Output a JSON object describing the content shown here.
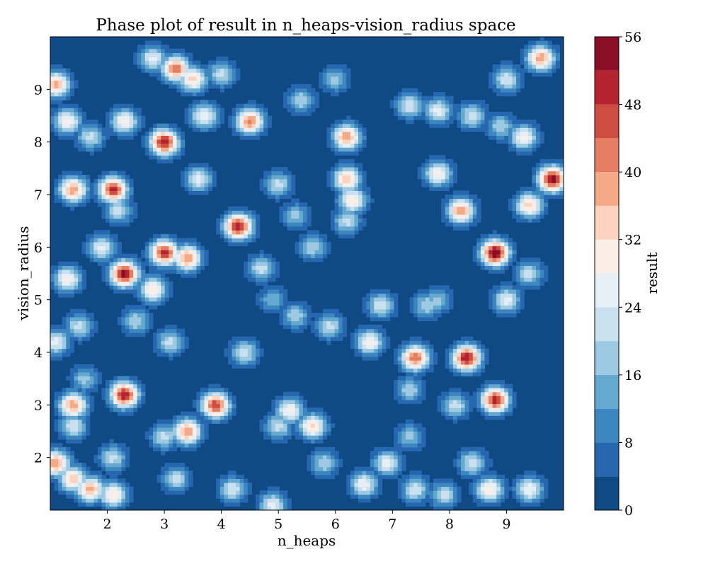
{
  "chart_data": {
    "type": "heatmap",
    "subtype": "filled-contour",
    "title": "Phase plot of result in n_heaps-vision_radius space",
    "xlabel": "n_heaps",
    "ylabel": "vision_radius",
    "xlim": [
      1,
      10
    ],
    "ylim": [
      1,
      10
    ],
    "xticks": [
      2,
      3,
      4,
      5,
      6,
      7,
      8,
      9
    ],
    "yticks": [
      2,
      3,
      4,
      5,
      6,
      7,
      8,
      9
    ],
    "grid": false,
    "colorbar": {
      "label": "result",
      "range": [
        0,
        56
      ],
      "levels": [
        0,
        4,
        8,
        12,
        16,
        20,
        24,
        28,
        32,
        36,
        40,
        44,
        48,
        52,
        56
      ],
      "ticks": [
        0,
        8,
        16,
        24,
        32,
        40,
        48,
        56
      ],
      "colors": [
        "#0f4a85",
        "#2767b0",
        "#3c87bf",
        "#66a9d0",
        "#9ec9e2",
        "#c9e0ef",
        "#e6eff5",
        "#faeee6",
        "#fbd3be",
        "#f4a987",
        "#e57e62",
        "#ce4d42",
        "#b62330",
        "#8a0f26"
      ]
    },
    "points": [
      {
        "x": 1.1,
        "y": 9.1,
        "v": 38
      },
      {
        "x": 1.3,
        "y": 8.4,
        "v": 30
      },
      {
        "x": 1.7,
        "y": 8.1,
        "v": 22
      },
      {
        "x": 1.4,
        "y": 7.1,
        "v": 40
      },
      {
        "x": 2.1,
        "y": 7.1,
        "v": 50
      },
      {
        "x": 2.3,
        "y": 8.4,
        "v": 30
      },
      {
        "x": 1.9,
        "y": 6.0,
        "v": 26
      },
      {
        "x": 1.3,
        "y": 5.4,
        "v": 30
      },
      {
        "x": 2.3,
        "y": 5.5,
        "v": 54
      },
      {
        "x": 2.8,
        "y": 5.2,
        "v": 32
      },
      {
        "x": 3.0,
        "y": 5.9,
        "v": 50
      },
      {
        "x": 3.0,
        "y": 8.0,
        "v": 52
      },
      {
        "x": 3.2,
        "y": 9.4,
        "v": 44
      },
      {
        "x": 3.5,
        "y": 9.2,
        "v": 34
      },
      {
        "x": 3.6,
        "y": 7.3,
        "v": 26
      },
      {
        "x": 3.4,
        "y": 5.8,
        "v": 40
      },
      {
        "x": 4.3,
        "y": 6.4,
        "v": 52
      },
      {
        "x": 4.5,
        "y": 8.4,
        "v": 42
      },
      {
        "x": 2.8,
        "y": 9.6,
        "v": 26
      },
      {
        "x": 2.5,
        "y": 4.6,
        "v": 20
      },
      {
        "x": 1.5,
        "y": 4.5,
        "v": 22
      },
      {
        "x": 3.1,
        "y": 4.2,
        "v": 22
      },
      {
        "x": 2.3,
        "y": 3.2,
        "v": 52
      },
      {
        "x": 1.4,
        "y": 3.0,
        "v": 40
      },
      {
        "x": 1.6,
        "y": 3.5,
        "v": 18
      },
      {
        "x": 1.4,
        "y": 2.6,
        "v": 24
      },
      {
        "x": 2.1,
        "y": 2.0,
        "v": 22
      },
      {
        "x": 1.1,
        "y": 1.9,
        "v": 40
      },
      {
        "x": 1.4,
        "y": 1.6,
        "v": 36
      },
      {
        "x": 1.7,
        "y": 1.4,
        "v": 38
      },
      {
        "x": 2.1,
        "y": 1.3,
        "v": 32
      },
      {
        "x": 3.4,
        "y": 2.5,
        "v": 40
      },
      {
        "x": 3.0,
        "y": 2.4,
        "v": 22
      },
      {
        "x": 3.9,
        "y": 3.0,
        "v": 48
      },
      {
        "x": 3.2,
        "y": 1.6,
        "v": 22
      },
      {
        "x": 4.2,
        "y": 1.4,
        "v": 24
      },
      {
        "x": 4.9,
        "y": 1.1,
        "v": 26
      },
      {
        "x": 4.4,
        "y": 4.0,
        "v": 24
      },
      {
        "x": 5.2,
        "y": 2.9,
        "v": 30
      },
      {
        "x": 5.6,
        "y": 2.6,
        "v": 34
      },
      {
        "x": 5.0,
        "y": 2.6,
        "v": 22
      },
      {
        "x": 5.8,
        "y": 1.9,
        "v": 20
      },
      {
        "x": 6.5,
        "y": 1.5,
        "v": 28
      },
      {
        "x": 6.9,
        "y": 1.9,
        "v": 26
      },
      {
        "x": 7.4,
        "y": 1.4,
        "v": 24
      },
      {
        "x": 7.9,
        "y": 1.3,
        "v": 22
      },
      {
        "x": 8.7,
        "y": 1.4,
        "v": 32
      },
      {
        "x": 9.4,
        "y": 1.4,
        "v": 28
      },
      {
        "x": 8.4,
        "y": 1.9,
        "v": 24
      },
      {
        "x": 7.3,
        "y": 2.4,
        "v": 18
      },
      {
        "x": 7.4,
        "y": 3.9,
        "v": 44
      },
      {
        "x": 7.3,
        "y": 3.3,
        "v": 20
      },
      {
        "x": 6.6,
        "y": 4.2,
        "v": 30
      },
      {
        "x": 8.3,
        "y": 3.9,
        "v": 52
      },
      {
        "x": 8.8,
        "y": 3.1,
        "v": 50
      },
      {
        "x": 8.1,
        "y": 3.0,
        "v": 22
      },
      {
        "x": 5.9,
        "y": 4.5,
        "v": 22
      },
      {
        "x": 5.3,
        "y": 4.7,
        "v": 20
      },
      {
        "x": 6.8,
        "y": 4.9,
        "v": 24
      },
      {
        "x": 7.6,
        "y": 4.9,
        "v": 20
      },
      {
        "x": 8.8,
        "y": 5.9,
        "v": 56
      },
      {
        "x": 8.2,
        "y": 6.7,
        "v": 40
      },
      {
        "x": 7.8,
        "y": 7.4,
        "v": 30
      },
      {
        "x": 9.4,
        "y": 6.8,
        "v": 34
      },
      {
        "x": 9.8,
        "y": 7.3,
        "v": 54
      },
      {
        "x": 9.3,
        "y": 8.1,
        "v": 30
      },
      {
        "x": 9.6,
        "y": 9.6,
        "v": 40
      },
      {
        "x": 9.0,
        "y": 9.2,
        "v": 24
      },
      {
        "x": 6.2,
        "y": 8.1,
        "v": 40
      },
      {
        "x": 6.2,
        "y": 7.3,
        "v": 36
      },
      {
        "x": 6.3,
        "y": 6.9,
        "v": 32
      },
      {
        "x": 6.2,
        "y": 6.5,
        "v": 22
      },
      {
        "x": 5.4,
        "y": 8.8,
        "v": 20
      },
      {
        "x": 5.0,
        "y": 7.2,
        "v": 22
      },
      {
        "x": 5.3,
        "y": 6.6,
        "v": 18
      },
      {
        "x": 4.7,
        "y": 5.6,
        "v": 22
      },
      {
        "x": 5.6,
        "y": 6.0,
        "v": 20
      },
      {
        "x": 7.3,
        "y": 8.7,
        "v": 24
      },
      {
        "x": 7.8,
        "y": 8.6,
        "v": 26
      },
      {
        "x": 8.4,
        "y": 8.5,
        "v": 24
      },
      {
        "x": 9.0,
        "y": 5.0,
        "v": 26
      },
      {
        "x": 9.4,
        "y": 5.5,
        "v": 22
      },
      {
        "x": 7.8,
        "y": 5.0,
        "v": 18
      },
      {
        "x": 3.7,
        "y": 8.5,
        "v": 28
      },
      {
        "x": 4.0,
        "y": 9.3,
        "v": 22
      },
      {
        "x": 2.2,
        "y": 6.7,
        "v": 22
      },
      {
        "x": 1.1,
        "y": 4.2,
        "v": 26
      },
      {
        "x": 6.0,
        "y": 9.2,
        "v": 18
      },
      {
        "x": 8.9,
        "y": 8.3,
        "v": 20
      },
      {
        "x": 4.9,
        "y": 5.0,
        "v": 16
      }
    ]
  }
}
